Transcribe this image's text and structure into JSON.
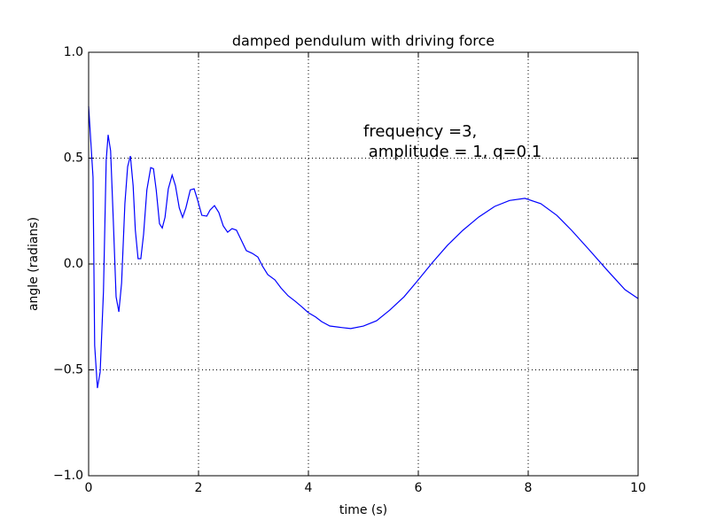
{
  "chart_data": {
    "type": "line",
    "title": "damped pendulum with driving force",
    "x_label": "time (s)",
    "y_label": "angle (radians)",
    "annotation": [
      "frequency =3,",
      " amplitude = 1, q=0.1"
    ],
    "x": [
      0,
      0.08,
      0.11,
      0.16,
      0.21,
      0.27,
      0.32,
      0.355,
      0.4,
      0.45,
      0.5,
      0.55,
      0.6,
      0.66,
      0.71,
      0.76,
      0.81,
      0.85,
      0.9,
      0.95,
      1.0,
      1.06,
      1.13,
      1.18,
      1.23,
      1.29,
      1.34,
      1.39,
      1.45,
      1.52,
      1.58,
      1.65,
      1.71,
      1.77,
      1.85,
      1.92,
      1.98,
      2.06,
      2.15,
      2.21,
      2.29,
      2.37,
      2.45,
      2.53,
      2.61,
      2.69,
      2.77,
      2.87,
      2.98,
      3.08,
      3.16,
      3.26,
      3.39,
      3.5,
      3.63,
      3.76,
      3.87,
      4.0,
      4.13,
      4.24,
      4.39,
      4.6,
      4.77,
      5.0,
      5.24,
      5.48,
      5.74,
      5.97,
      6.26,
      6.53,
      6.81,
      7.1,
      7.39,
      7.66,
      7.94,
      8.23,
      8.52,
      8.79,
      9.11,
      9.44,
      9.76,
      10
    ],
    "series": [
      {
        "name": "angle",
        "color": "#0000ff",
        "values": [
          0.745,
          0.41,
          -0.385,
          -0.586,
          -0.51,
          -0.13,
          0.49,
          0.61,
          0.535,
          0.2,
          -0.155,
          -0.226,
          -0.09,
          0.285,
          0.46,
          0.51,
          0.37,
          0.16,
          0.025,
          0.025,
          0.14,
          0.35,
          0.455,
          0.45,
          0.35,
          0.19,
          0.17,
          0.22,
          0.355,
          0.42,
          0.37,
          0.265,
          0.22,
          0.265,
          0.35,
          0.355,
          0.305,
          0.23,
          0.226,
          0.255,
          0.276,
          0.243,
          0.18,
          0.15,
          0.167,
          0.16,
          0.117,
          0.063,
          0.05,
          0.033,
          -0.008,
          -0.05,
          -0.075,
          -0.113,
          -0.15,
          -0.176,
          -0.2,
          -0.23,
          -0.25,
          -0.272,
          -0.293,
          -0.3,
          -0.305,
          -0.293,
          -0.268,
          -0.218,
          -0.155,
          -0.084,
          0.008,
          0.088,
          0.159,
          0.222,
          0.272,
          0.3,
          0.31,
          0.285,
          0.23,
          0.159,
          0.067,
          -0.03,
          -0.121,
          -0.163
        ]
      }
    ],
    "xlim": [
      0,
      10
    ],
    "ylim": [
      -1,
      1
    ],
    "xticks": [
      0,
      2,
      4,
      6,
      8,
      10
    ],
    "yticks": [
      {
        "value": -1,
        "label": "−1.0"
      },
      {
        "value": -0.5,
        "label": "−0.5"
      },
      {
        "value": 0,
        "label": "0.0"
      },
      {
        "value": 0.5,
        "label": "0.5"
      },
      {
        "value": 1,
        "label": "1.0"
      }
    ],
    "grid": true
  }
}
